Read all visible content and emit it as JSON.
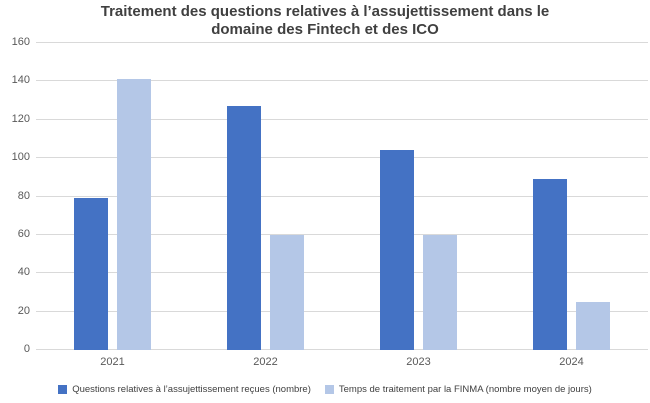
{
  "chart_data": {
    "type": "bar",
    "title": "Traitement des questions relatives à l’assujettissement dans le domaine des Fintech et des ICO",
    "title_lines": [
      "Traitement des questions relatives à l’assujettissement dans le",
      "domaine des Fintech et des ICO"
    ],
    "categories": [
      "2021",
      "2022",
      "2023",
      "2024"
    ],
    "series": [
      {
        "name": "Questions relatives à l’assujettissement reçues (nombre)",
        "color": "#4472C4",
        "values": [
          79,
          127,
          104,
          89
        ]
      },
      {
        "name": "Temps de traitement par la FINMA (nombre moyen de jours)",
        "color": "#B4C7E7",
        "values": [
          141,
          60,
          60,
          25
        ]
      }
    ],
    "xlabel": "",
    "ylabel": "",
    "ylim": [
      0,
      160
    ],
    "yticks": [
      0,
      20,
      40,
      60,
      80,
      100,
      120,
      140,
      160
    ],
    "grid": true,
    "legend_position": "bottom"
  },
  "colors": {
    "background": "#FFFFFF",
    "gridline": "#D9D9D9",
    "axis_text": "#595959",
    "title_text": "#404040",
    "legend_text": "#404040"
  }
}
